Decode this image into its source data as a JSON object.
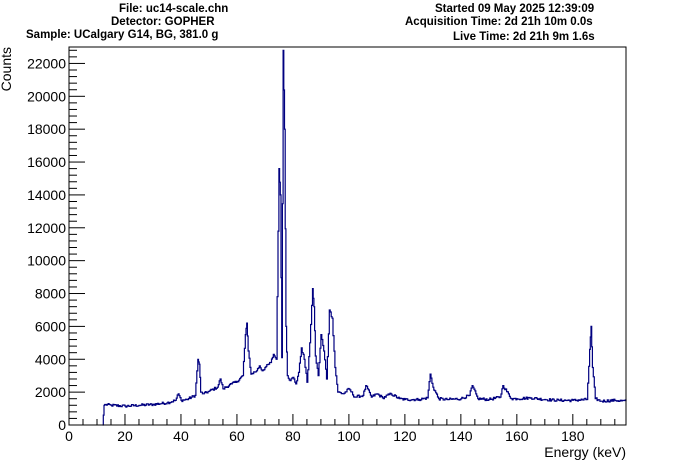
{
  "header": {
    "file": "File: uc14-scale.chn",
    "detector": "Detector: GOPHER",
    "sample": "Sample: UCalgary G14, BG, 381.0 g",
    "started": "Started 09 May 2025 12:39:09",
    "acquisition": "Acquisition Time: 2d 21h 10m 0.0s",
    "live": "Live Time: 2d 21h 9m 1.6s"
  },
  "colors": {
    "line": "#000080",
    "axis": "#000000",
    "background": "#ffffff"
  },
  "chart_data": {
    "type": "line",
    "title": "",
    "xlabel": "Energy (keV)",
    "ylabel": "Counts",
    "xlim": [
      0,
      199
    ],
    "ylim": [
      0,
      23000
    ],
    "x_ticks": [
      0,
      20,
      40,
      60,
      80,
      100,
      120,
      140,
      160,
      180
    ],
    "y_ticks": [
      0,
      2000,
      4000,
      6000,
      8000,
      10000,
      12000,
      14000,
      16000,
      18000,
      20000,
      22000
    ],
    "grid": false,
    "legend": "none",
    "series": [
      {
        "x": [
          12,
          12.5,
          13,
          15,
          20,
          25,
          30,
          35,
          38,
          39,
          40,
          42,
          45,
          46,
          46.5,
          47,
          48,
          50,
          53,
          54,
          55,
          58,
          60,
          62,
          63,
          63.5,
          64,
          65,
          67,
          68,
          69,
          70,
          72,
          73,
          74,
          75,
          75.5,
          76,
          76.5,
          77,
          77.5,
          78,
          79,
          80,
          81,
          82,
          83,
          84,
          85,
          86,
          87,
          87.5,
          88,
          89,
          90,
          91,
          92,
          93,
          94,
          95,
          96,
          98,
          100,
          102,
          105,
          106,
          108,
          110,
          112,
          115,
          118,
          120,
          125,
          128,
          129,
          130,
          132,
          135,
          140,
          143,
          144,
          146,
          150,
          154,
          155,
          158,
          160,
          165,
          170,
          175,
          180,
          185,
          186,
          186.5,
          187,
          188,
          190,
          195,
          199
        ],
        "y": [
          0,
          1200,
          1250,
          1200,
          1150,
          1200,
          1250,
          1350,
          1500,
          1900,
          1500,
          1550,
          1800,
          4000,
          3700,
          2000,
          1900,
          2050,
          2300,
          2800,
          2200,
          2500,
          2650,
          3000,
          5500,
          6200,
          4500,
          3100,
          3300,
          3600,
          3300,
          3500,
          3800,
          4300,
          4000,
          15600,
          14000,
          4100,
          22800,
          18000,
          6000,
          3000,
          2700,
          2900,
          2500,
          3200,
          4700,
          4000,
          2600,
          5000,
          8300,
          7200,
          4200,
          3000,
          5500,
          4500,
          2800,
          7000,
          6500,
          3500,
          2000,
          1900,
          2200,
          1700,
          1800,
          2400,
          1700,
          1900,
          1650,
          1900,
          1600,
          1550,
          1550,
          1650,
          3100,
          2300,
          1600,
          1550,
          1600,
          1800,
          2400,
          1600,
          1550,
          1700,
          2400,
          1600,
          1600,
          1650,
          1550,
          1500,
          1500,
          1550,
          4600,
          6000,
          3500,
          1600,
          1450,
          1500,
          1450
        ]
      }
    ]
  }
}
